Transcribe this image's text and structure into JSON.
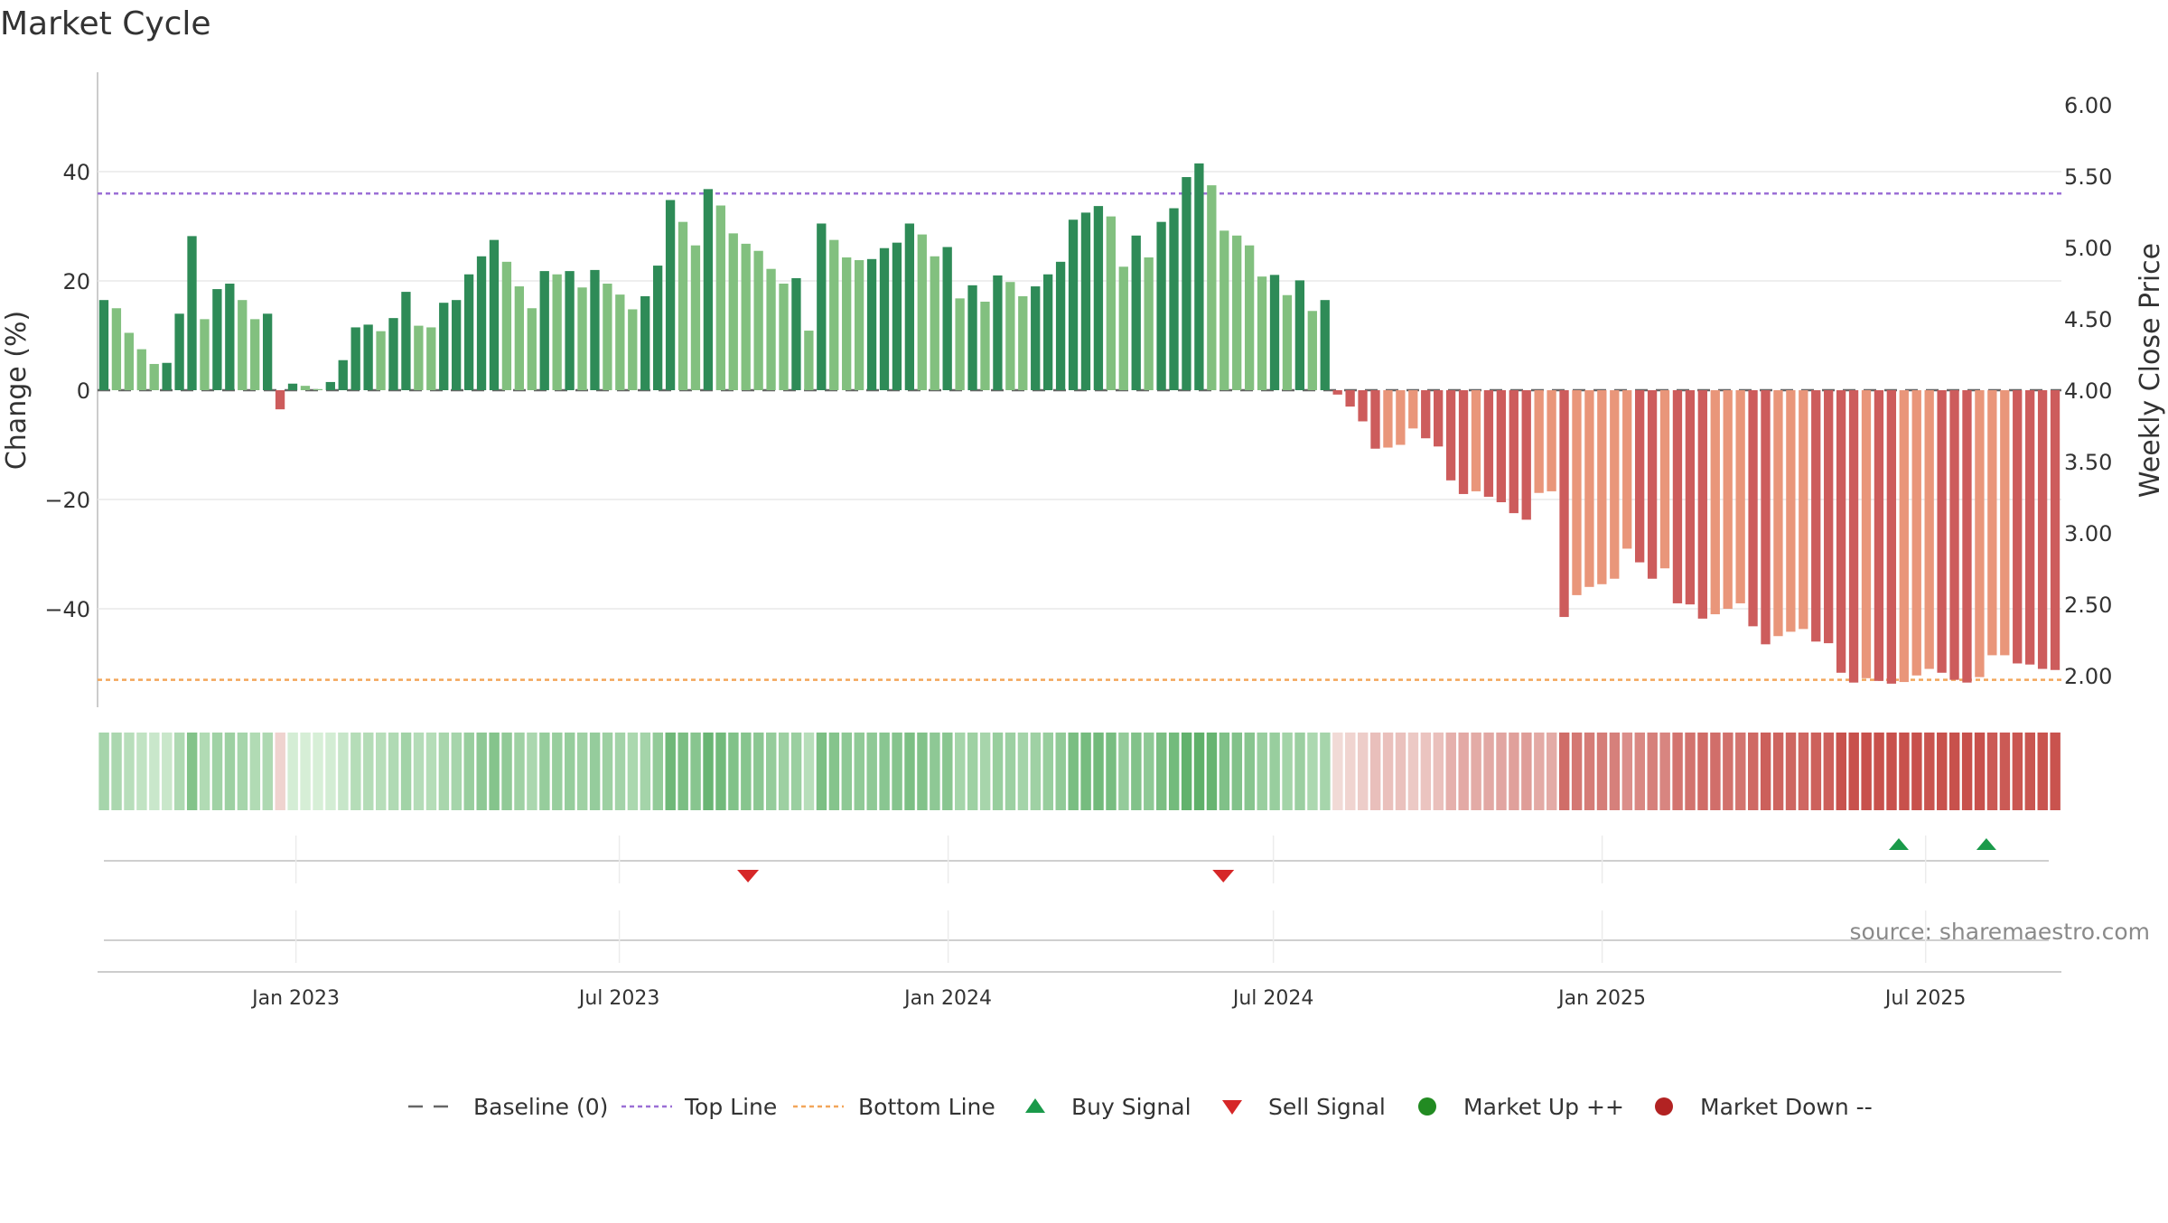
{
  "chart_data": {
    "type": "bar",
    "title": "Market Cycle",
    "ylabel": "Change (%)",
    "y2label": "Weekly Close Price",
    "ylim": [
      -58,
      58
    ],
    "y2lim": [
      1.75,
      6.05
    ],
    "yticks": [
      40,
      20,
      0,
      -20,
      -40
    ],
    "ytick_labels": [
      "40",
      "20",
      "0",
      "−20",
      "−40"
    ],
    "y2ticks": [
      6.0,
      5.5,
      5.0,
      4.5,
      4.0,
      3.5,
      3.0,
      2.5,
      2.0
    ],
    "y2tick_labels": [
      "6.00",
      "5.50",
      "5.00",
      "4.50",
      "4.00",
      "3.50",
      "3.00",
      "2.50",
      "2.00"
    ],
    "x_start": "2022-09-12",
    "x_end": "2025-09-15",
    "x_ticks": [
      "2023-01-01",
      "2023-07-01",
      "2024-01-01",
      "2024-07-01",
      "2025-01-01",
      "2025-07-01"
    ],
    "x_tick_labels": [
      "Jan 2023",
      "Jul 2023",
      "Jan 2024",
      "Jul 2024",
      "Jan 2025",
      "Jul 2025"
    ],
    "top_line": 36,
    "bottom_line": -53,
    "grid": true,
    "colors": {
      "up_dark": "#2e8b57",
      "up_light": "#82c07f",
      "down_dark": "#cd5c5c",
      "down_light": "#e9967a",
      "top_line": "#9b6fd6",
      "bottom_line": "#f2a65a",
      "buy": "#1a9a4a",
      "sell": "#d62728",
      "market_up": "#228b22",
      "market_down": "#b22222",
      "baseline": "#666666"
    },
    "values": [
      16.5,
      15,
      10.5,
      7.5,
      4.8,
      5,
      14,
      28.2,
      13,
      18.5,
      19.5,
      16.5,
      13,
      14,
      -3.5,
      1.2,
      0.8,
      0.2,
      1.5,
      5.5,
      11.5,
      12,
      10.8,
      13.2,
      18,
      11.8,
      11.5,
      16,
      16.5,
      21.2,
      24.5,
      27.5,
      23.5,
      19,
      15,
      21.8,
      21.2,
      21.8,
      18.8,
      22,
      19.5,
      17.5,
      14.8,
      17.2,
      22.8,
      34.8,
      30.8,
      26.5,
      36.8,
      33.8,
      28.7,
      26.8,
      25.5,
      22.2,
      19.5,
      20.5,
      10.9,
      30.5,
      27.5,
      24.3,
      23.8,
      24,
      26,
      27,
      30.5,
      28.5,
      24.5,
      26.2,
      16.8,
      19.2,
      16.2,
      21,
      19.8,
      17.2,
      19,
      21.2,
      23.5,
      31.2,
      32.5,
      33.7,
      31.8,
      22.6,
      28.3,
      24.3,
      30.8,
      33.3,
      39,
      41.5,
      37.5,
      29.2,
      28.3,
      26.5,
      20.8,
      21.1,
      17.4,
      20.1,
      14.5,
      16.5,
      -0.8,
      -3,
      -5.7,
      -10.7,
      -10.5,
      -10,
      -7,
      -8.8,
      -10.3,
      -16.5,
      -19,
      -18.5,
      -19.5,
      -20.5,
      -22.5,
      -23.7,
      -18.8,
      -18.5,
      -41.5,
      -37.5,
      -36,
      -35.5,
      -34.5,
      -29,
      -31.5,
      -34.5,
      -32.6,
      -39,
      -39.2,
      -41.8,
      -41,
      -40,
      -39,
      -43.2,
      -46.5,
      -45,
      -44.2,
      -43.7,
      -46,
      -46.3,
      -51.7,
      -53.5,
      -52.7,
      -53.2,
      -53.7,
      -53.4,
      -52.2,
      -51,
      -51.7,
      -53,
      -53.5,
      -52.5,
      -48.5,
      -48.5,
      -50,
      -50.2,
      -51,
      -51.2
    ],
    "strip_label": "",
    "buy_signals": [
      "2025-06-16",
      "2025-08-04"
    ],
    "sell_signals": [
      "2023-09-11",
      "2024-06-03"
    ],
    "source": "source: sharemaestro.com",
    "legend": [
      {
        "key": "baseline",
        "label": "Baseline (0)"
      },
      {
        "key": "top",
        "label": "Top Line"
      },
      {
        "key": "bottom",
        "label": "Bottom Line"
      },
      {
        "key": "buy",
        "label": "Buy Signal"
      },
      {
        "key": "sell",
        "label": "Sell Signal"
      },
      {
        "key": "mup",
        "label": "Market Up ++"
      },
      {
        "key": "mdown",
        "label": "Market Down --"
      }
    ]
  }
}
